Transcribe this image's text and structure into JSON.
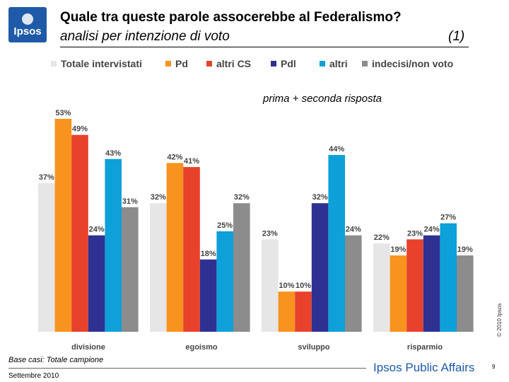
{
  "header": {
    "logo_text": "Ipsos",
    "title": "Quale tra queste parole assocerebbe al Federalismo?",
    "subtitle": "analisi per intenzione di voto",
    "subtitle_number": "(1)",
    "note": "prima + seconda risposta"
  },
  "chart_data": {
    "type": "bar",
    "categories": [
      "divisione",
      "egoismo",
      "sviluppo",
      "risparmio"
    ],
    "series": [
      {
        "name": "Totale intervistati",
        "color": "#e6e6e6",
        "values": [
          37,
          32,
          23,
          22
        ]
      },
      {
        "name": "Pd",
        "color": "#f7931e",
        "values": [
          53,
          42,
          10,
          19
        ]
      },
      {
        "name": "altri CS",
        "color": "#e8412c",
        "values": [
          49,
          41,
          10,
          23
        ]
      },
      {
        "name": "Pdl",
        "color": "#2e3192",
        "values": [
          24,
          18,
          32,
          24
        ]
      },
      {
        "name": "altri",
        "color": "#0ea0d8",
        "values": [
          43,
          25,
          44,
          27
        ]
      },
      {
        "name": "indecisi/non voto",
        "color": "#8c8c8c",
        "values": [
          31,
          32,
          24,
          19
        ]
      }
    ],
    "value_suffix": "%",
    "ylim": [
      0,
      60
    ],
    "legend": "top",
    "grid": false
  },
  "footer": {
    "copyright": "© 2010 Ipsos",
    "base": "Base casi: Totale campione",
    "date": "Settembre 2010",
    "brand": "Ipsos Public Affairs",
    "page": "9"
  }
}
